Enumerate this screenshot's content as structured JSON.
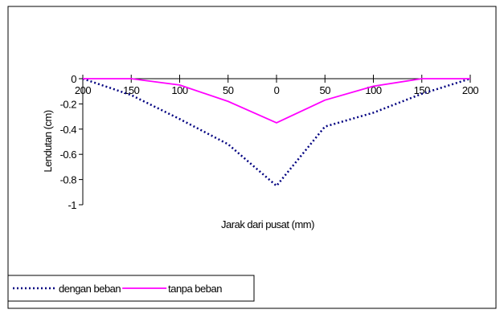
{
  "chart_data": {
    "type": "line",
    "x_label": "Jarak dari pusat (mm)",
    "y_label": "Lendutan (cm)",
    "x": [
      -200,
      -150,
      -100,
      -50,
      0,
      50,
      100,
      150,
      200
    ],
    "series": [
      {
        "name": "dengan beban",
        "color": "#000080",
        "dash": true,
        "values": [
          0,
          -0.13,
          -0.32,
          -0.52,
          -0.85,
          -0.38,
          -0.27,
          -0.12,
          0
        ]
      },
      {
        "name": "tanpa beban",
        "color": "#ff00ff",
        "dash": false,
        "values": [
          0,
          0,
          -0.05,
          -0.18,
          -0.35,
          -0.17,
          -0.06,
          0,
          0
        ]
      }
    ],
    "xlim": [
      -200,
      200
    ],
    "xticks": [
      {
        "value": -200,
        "label": "200"
      },
      {
        "value": -150,
        "label": "150"
      },
      {
        "value": -100,
        "label": "100"
      },
      {
        "value": -50,
        "label": "50"
      },
      0,
      50,
      100,
      150,
      200
    ],
    "ylim": [
      -1,
      0
    ],
    "yticks": [
      0,
      -0.2,
      -0.4,
      -0.6,
      -0.8,
      -1
    ]
  }
}
